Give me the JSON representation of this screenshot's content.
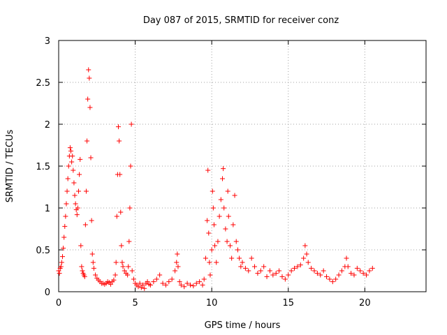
{
  "chart_data": {
    "type": "scatter",
    "title": "Day 087 of 2015, SRMTID for receiver conz",
    "xlabel": "GPS time / hours",
    "ylabel": "SRMTID / TECUs",
    "xlim": [
      0,
      24
    ],
    "ylim": [
      0,
      3
    ],
    "grid": true,
    "marker": "+",
    "series_color": "#ff0000",
    "x_ticks": [
      {
        "value": 0,
        "label": "0"
      },
      {
        "value": 5,
        "label": "5"
      },
      {
        "value": 10,
        "label": "10"
      },
      {
        "value": 15,
        "label": "15"
      },
      {
        "value": 20,
        "label": "20"
      }
    ],
    "y_ticks": [
      {
        "value": 0,
        "label": "0"
      },
      {
        "value": 0.5,
        "label": "0.5"
      },
      {
        "value": 1,
        "label": "1"
      },
      {
        "value": 1.5,
        "label": "1.5"
      },
      {
        "value": 2,
        "label": "2"
      },
      {
        "value": 2.5,
        "label": "2.5"
      },
      {
        "value": 3,
        "label": "3"
      }
    ],
    "points": [
      [
        0.0,
        0.25
      ],
      [
        0.05,
        0.22
      ],
      [
        0.1,
        0.28
      ],
      [
        0.15,
        0.3
      ],
      [
        0.2,
        0.35
      ],
      [
        0.25,
        0.42
      ],
      [
        0.3,
        0.52
      ],
      [
        0.35,
        0.65
      ],
      [
        0.4,
        0.78
      ],
      [
        0.45,
        0.9
      ],
      [
        0.5,
        1.05
      ],
      [
        0.55,
        1.2
      ],
      [
        0.6,
        1.35
      ],
      [
        0.65,
        1.5
      ],
      [
        0.7,
        1.62
      ],
      [
        0.75,
        1.72
      ],
      [
        0.8,
        1.68
      ],
      [
        0.85,
        1.55
      ],
      [
        0.9,
        1.62
      ],
      [
        0.95,
        1.45
      ],
      [
        1.0,
        1.3
      ],
      [
        1.05,
        1.15
      ],
      [
        1.1,
        1.05
      ],
      [
        1.15,
        0.98
      ],
      [
        1.2,
        0.92
      ],
      [
        1.25,
        1.0
      ],
      [
        1.3,
        1.2
      ],
      [
        1.35,
        1.4
      ],
      [
        1.4,
        1.58
      ],
      [
        1.45,
        0.55
      ],
      [
        1.5,
        0.3
      ],
      [
        1.55,
        0.25
      ],
      [
        1.6,
        0.22
      ],
      [
        1.65,
        0.2
      ],
      [
        1.7,
        0.18
      ],
      [
        1.75,
        0.8
      ],
      [
        1.8,
        1.2
      ],
      [
        1.85,
        1.8
      ],
      [
        1.9,
        2.3
      ],
      [
        1.95,
        2.65
      ],
      [
        2.0,
        2.55
      ],
      [
        2.05,
        2.2
      ],
      [
        2.1,
        1.6
      ],
      [
        2.15,
        0.85
      ],
      [
        2.2,
        0.45
      ],
      [
        2.25,
        0.35
      ],
      [
        2.3,
        0.28
      ],
      [
        2.4,
        0.2
      ],
      [
        2.5,
        0.16
      ],
      [
        2.6,
        0.14
      ],
      [
        2.7,
        0.12
      ],
      [
        2.8,
        0.1
      ],
      [
        2.9,
        0.1
      ],
      [
        3.0,
        0.09
      ],
      [
        3.1,
        0.1
      ],
      [
        3.2,
        0.12
      ],
      [
        3.3,
        0.11
      ],
      [
        3.4,
        0.09
      ],
      [
        3.5,
        0.12
      ],
      [
        3.6,
        0.14
      ],
      [
        3.7,
        0.2
      ],
      [
        3.75,
        0.35
      ],
      [
        3.8,
        0.9
      ],
      [
        3.85,
        1.4
      ],
      [
        3.9,
        1.97
      ],
      [
        3.95,
        1.8
      ],
      [
        4.0,
        1.4
      ],
      [
        4.05,
        0.95
      ],
      [
        4.1,
        0.55
      ],
      [
        4.15,
        0.35
      ],
      [
        4.2,
        0.3
      ],
      [
        4.3,
        0.25
      ],
      [
        4.4,
        0.22
      ],
      [
        4.5,
        0.2
      ],
      [
        4.55,
        0.3
      ],
      [
        4.6,
        0.6
      ],
      [
        4.65,
        1.0
      ],
      [
        4.7,
        1.5
      ],
      [
        4.75,
        2.0
      ],
      [
        4.8,
        0.25
      ],
      [
        4.9,
        0.15
      ],
      [
        5.0,
        0.1
      ],
      [
        5.1,
        0.08
      ],
      [
        5.2,
        0.06
      ],
      [
        5.3,
        0.1
      ],
      [
        5.4,
        0.05
      ],
      [
        5.5,
        0.08
      ],
      [
        5.6,
        0.04
      ],
      [
        5.7,
        0.1
      ],
      [
        5.8,
        0.12
      ],
      [
        5.9,
        0.09
      ],
      [
        6.0,
        0.08
      ],
      [
        6.2,
        0.12
      ],
      [
        6.4,
        0.15
      ],
      [
        6.6,
        0.2
      ],
      [
        6.8,
        0.1
      ],
      [
        7.0,
        0.08
      ],
      [
        7.2,
        0.12
      ],
      [
        7.4,
        0.15
      ],
      [
        7.6,
        0.25
      ],
      [
        7.7,
        0.35
      ],
      [
        7.75,
        0.45
      ],
      [
        7.8,
        0.3
      ],
      [
        7.9,
        0.12
      ],
      [
        8.0,
        0.08
      ],
      [
        8.2,
        0.06
      ],
      [
        8.4,
        0.1
      ],
      [
        8.6,
        0.08
      ],
      [
        8.8,
        0.07
      ],
      [
        9.0,
        0.1
      ],
      [
        9.2,
        0.12
      ],
      [
        9.4,
        0.08
      ],
      [
        9.5,
        0.15
      ],
      [
        9.6,
        0.4
      ],
      [
        9.7,
        0.85
      ],
      [
        9.75,
        1.45
      ],
      [
        9.8,
        0.7
      ],
      [
        9.85,
        0.35
      ],
      [
        9.9,
        0.2
      ],
      [
        10.0,
        0.5
      ],
      [
        10.05,
        1.2
      ],
      [
        10.1,
        1.0
      ],
      [
        10.15,
        0.8
      ],
      [
        10.2,
        0.55
      ],
      [
        10.3,
        0.35
      ],
      [
        10.4,
        0.6
      ],
      [
        10.5,
        0.9
      ],
      [
        10.6,
        1.1
      ],
      [
        10.7,
        1.35
      ],
      [
        10.75,
        1.47
      ],
      [
        10.8,
        1.0
      ],
      [
        10.9,
        0.75
      ],
      [
        11.0,
        0.6
      ],
      [
        11.05,
        1.2
      ],
      [
        11.1,
        0.9
      ],
      [
        11.2,
        0.55
      ],
      [
        11.3,
        0.4
      ],
      [
        11.4,
        0.8
      ],
      [
        11.5,
        1.15
      ],
      [
        11.6,
        0.6
      ],
      [
        11.7,
        0.5
      ],
      [
        11.8,
        0.4
      ],
      [
        11.9,
        0.3
      ],
      [
        12.0,
        0.35
      ],
      [
        12.2,
        0.28
      ],
      [
        12.4,
        0.25
      ],
      [
        12.6,
        0.4
      ],
      [
        12.8,
        0.3
      ],
      [
        13.0,
        0.22
      ],
      [
        13.2,
        0.25
      ],
      [
        13.4,
        0.3
      ],
      [
        13.6,
        0.18
      ],
      [
        13.8,
        0.25
      ],
      [
        14.0,
        0.2
      ],
      [
        14.2,
        0.22
      ],
      [
        14.4,
        0.25
      ],
      [
        14.6,
        0.18
      ],
      [
        14.8,
        0.15
      ],
      [
        15.0,
        0.2
      ],
      [
        15.2,
        0.25
      ],
      [
        15.4,
        0.28
      ],
      [
        15.6,
        0.3
      ],
      [
        15.8,
        0.32
      ],
      [
        16.0,
        0.4
      ],
      [
        16.1,
        0.55
      ],
      [
        16.2,
        0.45
      ],
      [
        16.3,
        0.35
      ],
      [
        16.5,
        0.28
      ],
      [
        16.7,
        0.25
      ],
      [
        16.9,
        0.22
      ],
      [
        17.1,
        0.2
      ],
      [
        17.3,
        0.25
      ],
      [
        17.5,
        0.18
      ],
      [
        17.7,
        0.15
      ],
      [
        17.9,
        0.12
      ],
      [
        18.1,
        0.15
      ],
      [
        18.3,
        0.2
      ],
      [
        18.5,
        0.25
      ],
      [
        18.7,
        0.3
      ],
      [
        18.8,
        0.4
      ],
      [
        18.9,
        0.3
      ],
      [
        19.1,
        0.22
      ],
      [
        19.3,
        0.2
      ],
      [
        19.5,
        0.28
      ],
      [
        19.7,
        0.25
      ],
      [
        19.9,
        0.22
      ],
      [
        20.1,
        0.2
      ],
      [
        20.3,
        0.25
      ],
      [
        20.5,
        0.28
      ]
    ]
  }
}
